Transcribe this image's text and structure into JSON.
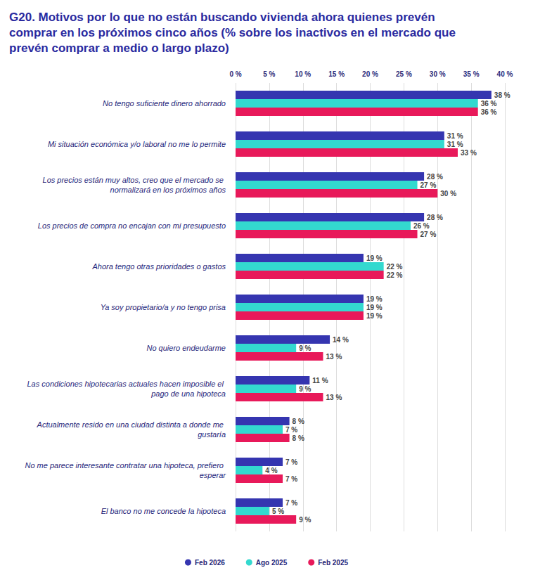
{
  "chart_data": {
    "type": "bar",
    "orientation": "horizontal",
    "title": "G20. Motivos por lo que no están buscando vivienda ahora quienes prevén comprar en los próximos cinco años (% sobre los inactivos en el mercado que prevén comprar a medio o largo plazo)",
    "categories": [
      "No tengo suficiente dinero ahorrado",
      "Mi situación económica y/o laboral no me lo permite",
      "Los precios están muy altos, creo que el mercado se normalizará en los próximos años",
      "Los precios de compra no encajan con mi presupuesto",
      "Ahora tengo otras prioridades o gastos",
      "Ya soy propietario/a y no tengo prisa",
      "No quiero endeudarme",
      "Las condiciones hipotecarias actuales hacen imposible el pago de una hipoteca",
      "Actualmente resido en una ciudad distinta a donde me gustaría",
      "No me parece interesante contratar una hipoteca, prefiero esperar",
      "El banco no me concede la hipoteca"
    ],
    "series": [
      {
        "name": "Feb 2026",
        "color": "#3535b0",
        "values": [
          38,
          31,
          28,
          28,
          19,
          19,
          14,
          11,
          8,
          7,
          7
        ],
        "value_labels": [
          "38 %",
          "31 %",
          "28 %",
          "28 %",
          "19 %",
          "19 %",
          "14 %",
          "11 %",
          "8 %",
          "7 %",
          "7 %"
        ]
      },
      {
        "name": "Ago 2025",
        "color": "#33d9cf",
        "values": [
          36,
          31,
          27,
          26,
          22,
          19,
          9,
          9,
          7,
          4,
          5
        ],
        "value_labels": [
          "36 %",
          "31 %",
          "27 %",
          "26 %",
          "22 %",
          "19 %",
          "9 %",
          "9 %",
          "7 %",
          "4 %",
          "5 %"
        ]
      },
      {
        "name": "Feb 2025",
        "color": "#e8195a",
        "values": [
          36,
          33,
          30,
          27,
          22,
          19,
          13,
          13,
          8,
          7,
          9
        ],
        "value_labels": [
          "36 %",
          "33 %",
          "30 %",
          "27 %",
          "22 %",
          "19 %",
          "13 %",
          "13 %",
          "8 %",
          "7 %",
          "9 %"
        ]
      }
    ],
    "xlim": [
      0,
      40
    ],
    "xticks": [
      {
        "value": 0,
        "label": "0 %"
      },
      {
        "value": 5,
        "label": "5 %"
      },
      {
        "value": 10,
        "label": "10 %"
      },
      {
        "value": 15,
        "label": "15 %"
      },
      {
        "value": 20,
        "label": "20 %"
      },
      {
        "value": 25,
        "label": "25 %"
      },
      {
        "value": 30,
        "label": "30 %"
      },
      {
        "value": 35,
        "label": "35 %"
      },
      {
        "value": 40,
        "label": "40 %"
      }
    ],
    "grid": true,
    "legend": "bottom",
    "data_labels": true
  }
}
